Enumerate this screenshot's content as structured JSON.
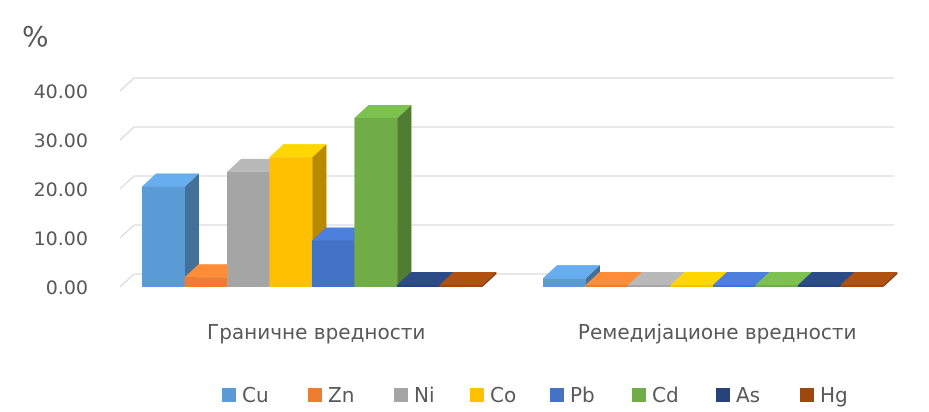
{
  "chart_data": {
    "type": "bar",
    "variant": "3d-clustered-column",
    "unit": "%",
    "categories": [
      "Граничне вредности",
      "Ремедијационе вредности"
    ],
    "y_ticks": [
      "0.00",
      "10.00",
      "20.00",
      "30.00",
      "40.00"
    ],
    "ylim": [
      0,
      40
    ],
    "grid": true,
    "legend_position": "bottom",
    "series": [
      {
        "name": "Cu",
        "color": "#5B9BD5",
        "values": [
          20.5,
          1.8
        ]
      },
      {
        "name": "Zn",
        "color": "#ED7D31",
        "values": [
          2.0,
          0.1
        ]
      },
      {
        "name": "Ni",
        "color": "#A5A5A5",
        "values": [
          23.5,
          0.1
        ]
      },
      {
        "name": "Co",
        "color": "#FFC000",
        "values": [
          26.5,
          0.1
        ]
      },
      {
        "name": "Pb",
        "color": "#4472C4",
        "values": [
          9.5,
          0.1
        ]
      },
      {
        "name": "Cd",
        "color": "#70AD47",
        "values": [
          34.5,
          0.1
        ]
      },
      {
        "name": "As",
        "color": "#264478",
        "values": [
          0.3,
          0.3
        ]
      },
      {
        "name": "Hg",
        "color": "#9E480E",
        "values": [
          0.3,
          0.3
        ]
      }
    ]
  }
}
